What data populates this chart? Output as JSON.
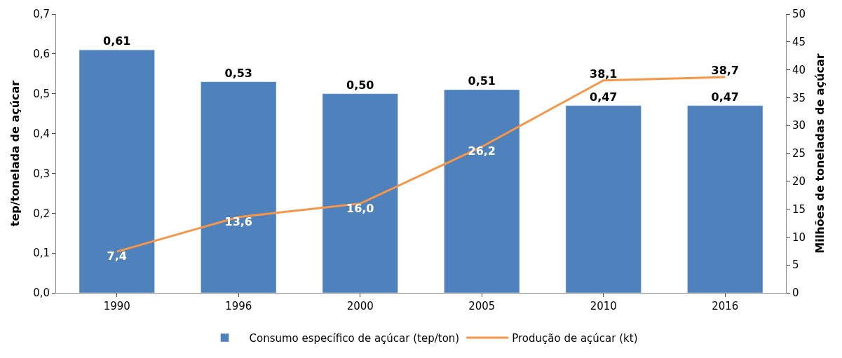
{
  "chart_data": {
    "type": "bar",
    "categories": [
      "1990",
      "1996",
      "2000",
      "2005",
      "2010",
      "2016"
    ],
    "ylabel": "tep/tonelada de açúcar",
    "y2label": "Milhões de toneladas de açúcar",
    "series": [
      {
        "name": "Consumo específico de açúcar (tep/ton)",
        "color": "#4f81bd",
        "values": [
          0.61,
          0.53,
          0.5,
          0.51,
          0.47,
          0.47
        ],
        "value_labels": [
          "0,61",
          "0,53",
          "0,50",
          "0,51",
          "0,47",
          "0,47"
        ]
      },
      {
        "name": "Produção de açúcar (kt)",
        "type": "line",
        "axis": "y2",
        "color": "#f79646",
        "values": [
          7.4,
          13.6,
          16.0,
          26.2,
          38.1,
          38.7
        ],
        "value_labels": [
          "7,4",
          "13,6",
          "16,0",
          "26,2",
          "38,1",
          "38,7"
        ]
      }
    ],
    "ylim": [
      0,
      0.7
    ],
    "yticks": [
      {
        "value": 0,
        "label": "0,0"
      },
      {
        "value": 0.1,
        "label": "0,1"
      },
      {
        "value": 0.2,
        "label": "0,2"
      },
      {
        "value": 0.3,
        "label": "0,3"
      },
      {
        "value": 0.4,
        "label": "0,4"
      },
      {
        "value": 0.5,
        "label": "0,5"
      },
      {
        "value": 0.6,
        "label": "0,6"
      },
      {
        "value": 0.7,
        "label": "0,7"
      }
    ],
    "y2lim": [
      0,
      50
    ],
    "y2ticks": [
      0,
      5,
      10,
      15,
      20,
      25,
      30,
      35,
      40,
      45,
      50
    ],
    "legend": "bottom",
    "marker": "none",
    "line_style": "solid"
  }
}
